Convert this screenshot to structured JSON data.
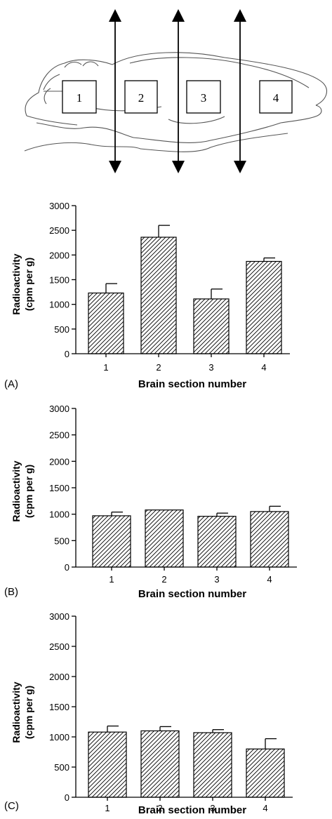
{
  "diagram": {
    "section_labels": [
      "1",
      "2",
      "3",
      "4"
    ]
  },
  "chart_data": [
    {
      "type": "bar",
      "panel_label": "(A)",
      "categories": [
        "1",
        "2",
        "3",
        "4"
      ],
      "values": [
        1230,
        2360,
        1110,
        1870
      ],
      "errors": [
        190,
        240,
        200,
        70
      ],
      "xlabel": "Brain section number",
      "ylabel_line1": "Radioactivity",
      "ylabel_line2": "(cpm per g)",
      "ylim": [
        0,
        3000
      ],
      "yticks": [
        "0",
        "500",
        "1000",
        "1500",
        "2000",
        "2500",
        "3000"
      ],
      "grid": false,
      "bar_fill": "diagonal-hatch"
    },
    {
      "type": "bar",
      "panel_label": "(B)",
      "categories": [
        "1",
        "2",
        "3",
        "4"
      ],
      "values": [
        970,
        1080,
        960,
        1050
      ],
      "errors": [
        70,
        0,
        60,
        100
      ],
      "xlabel": "Brain section number",
      "ylabel_line1": "Radioactivity",
      "ylabel_line2": "(cpm per g)",
      "ylim": [
        0,
        3000
      ],
      "yticks": [
        "0",
        "500",
        "1000",
        "1500",
        "2000",
        "2500",
        "3000"
      ],
      "grid": false,
      "bar_fill": "diagonal-hatch"
    },
    {
      "type": "bar",
      "panel_label": "(C)",
      "categories": [
        "1",
        "2",
        "3",
        "4"
      ],
      "values": [
        1080,
        1100,
        1070,
        800
      ],
      "errors": [
        100,
        70,
        50,
        170
      ],
      "xlabel": "Brain section number",
      "ylabel_line1": "Radioactivity",
      "ylabel_line2": "(cpm per g)",
      "ylim": [
        0,
        3000
      ],
      "yticks": [
        "0",
        "500",
        "1000",
        "1500",
        "2000",
        "2500",
        "3000"
      ],
      "grid": false,
      "bar_fill": "diagonal-hatch"
    }
  ]
}
